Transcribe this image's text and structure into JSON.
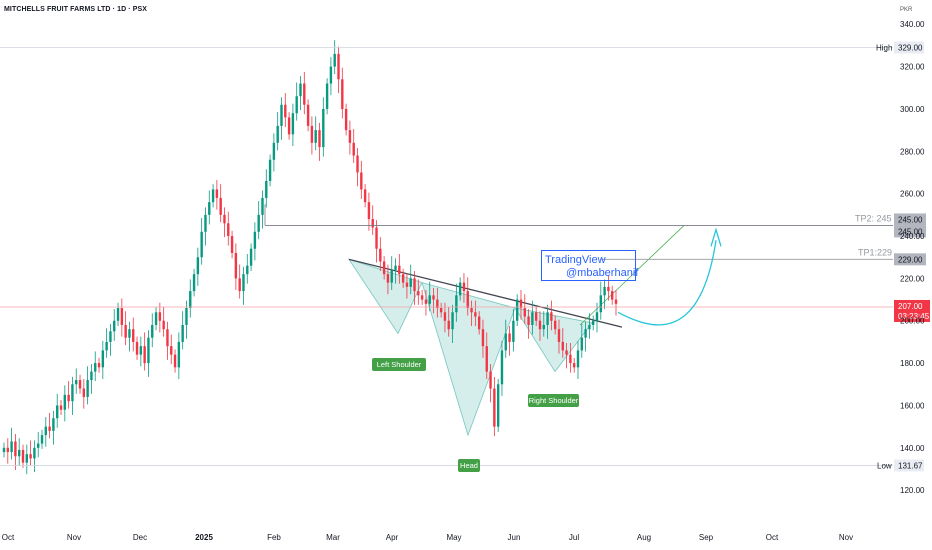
{
  "header": {
    "title": "MITCHELLS FRUIT FARMS LTD · 1D · PSX",
    "currency": "PKR"
  },
  "watermark": {
    "line1": "TradingView",
    "line2": "@mbaberhanif"
  },
  "chart_data": {
    "type": "candlestick",
    "ylim": [
      113,
      342
    ],
    "y_ticks": [
      "340.00",
      "320.00",
      "300.00",
      "280.00",
      "260.00",
      "240.00",
      "220.00",
      "200.00",
      "180.00",
      "160.00",
      "140.00",
      "120.00"
    ],
    "x_ticks": [
      "Oct",
      "Nov",
      "Dec",
      "2025",
      "Feb",
      "Mar",
      "Apr",
      "May",
      "Jun",
      "Jul",
      "Aug",
      "Sep",
      "Oct",
      "Nov"
    ],
    "candles_close": [
      140,
      138,
      143,
      136,
      139,
      133,
      137,
      135,
      140,
      142,
      146,
      150,
      148,
      154,
      160,
      158,
      165,
      162,
      170,
      172,
      168,
      164,
      172,
      176,
      180,
      178,
      186,
      190,
      195,
      200,
      206,
      198,
      192,
      196,
      190,
      184,
      188,
      180,
      192,
      198,
      204,
      200,
      196,
      188,
      184,
      178,
      190,
      198,
      206,
      214,
      222,
      230,
      242,
      250,
      256,
      262,
      258,
      250,
      246,
      240,
      232,
      220,
      214,
      222,
      226,
      234,
      242,
      250,
      258,
      266,
      276,
      284,
      292,
      302,
      296,
      288,
      298,
      306,
      312,
      302,
      292,
      284,
      290,
      282,
      300,
      312,
      320,
      326,
      314,
      300,
      290,
      284,
      278,
      270,
      262,
      256,
      248,
      244,
      234,
      228,
      222,
      218,
      224,
      226,
      222,
      218,
      216,
      220,
      214,
      212,
      210,
      208,
      212,
      210,
      206,
      204,
      200,
      196,
      204,
      212,
      218,
      214,
      206,
      204,
      202,
      196,
      188,
      176,
      168,
      150,
      170,
      186,
      194,
      190,
      200,
      210,
      206,
      202,
      198,
      204,
      200,
      196,
      198,
      204,
      200,
      196,
      190,
      186,
      184,
      180,
      178,
      186,
      192,
      196,
      198,
      200,
      204,
      212,
      216,
      214,
      210,
      208
    ],
    "levels": [
      {
        "label": "High",
        "value": "329.00",
        "y": 329
      },
      {
        "label": "TP2: 245",
        "value": "245.00",
        "y": 245
      },
      {
        "label": "TP1:229",
        "value": "229.00",
        "y": 229
      },
      {
        "label": "Low",
        "value": "131.67",
        "y": 131.67
      }
    ],
    "price_labels": [
      "245.00",
      "245.00",
      "229.00"
    ],
    "current_price": {
      "value": "207.00",
      "countdown": "03:23:45"
    },
    "annotations": [
      {
        "text": "Left Shoulder"
      },
      {
        "text": "Head"
      },
      {
        "text": "Right Shoulder"
      }
    ],
    "colors": {
      "up": "#089981",
      "down": "#f23645",
      "pattern_fill": "#b2dfdb",
      "arrow": "#26c6da"
    }
  }
}
